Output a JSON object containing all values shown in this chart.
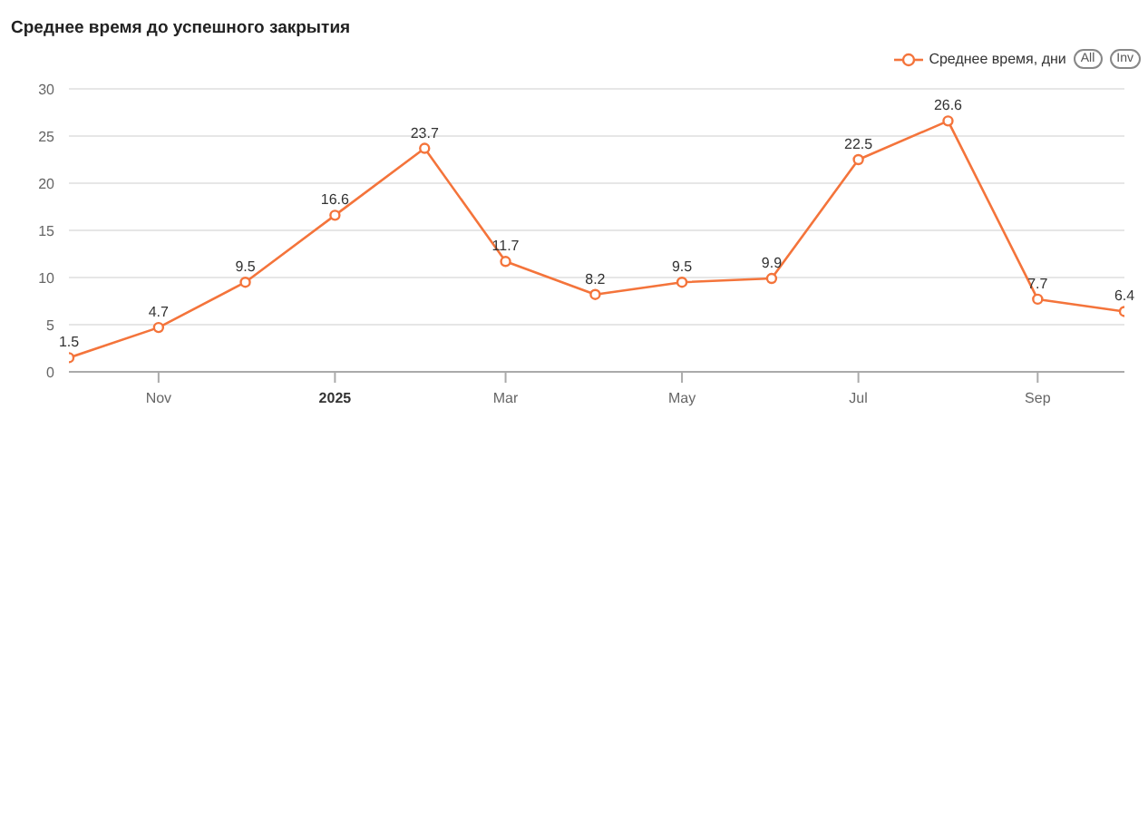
{
  "chart_data": {
    "type": "line",
    "title": "Среднее время до успешного закрытия",
    "x": [
      "2024-10",
      "2024-11",
      "2024-12",
      "2025-01",
      "2025-02",
      "2025-03",
      "2025-04",
      "2025-05",
      "2025-06",
      "2025-07",
      "2025-08",
      "2025-09",
      "2025-10"
    ],
    "series": [
      {
        "name": "Среднее время, дни",
        "color": "#f4743b",
        "values": [
          1.5,
          4.7,
          9.5,
          16.6,
          23.7,
          11.7,
          8.2,
          9.5,
          9.9,
          22.5,
          26.6,
          7.7,
          6.4
        ]
      }
    ],
    "xlim": [
      "2024-10",
      "2025-10"
    ],
    "xticks": [
      {
        "value": "2024-11",
        "label": "Nov"
      },
      {
        "value": "2025-01",
        "label": "2025"
      },
      {
        "value": "2025-03",
        "label": "Mar"
      },
      {
        "value": "2025-05",
        "label": "May"
      },
      {
        "value": "2025-07",
        "label": "Jul"
      },
      {
        "value": "2025-09",
        "label": "Sep"
      }
    ],
    "ylim": [
      0,
      30
    ],
    "yticks": [
      0,
      5,
      10,
      15,
      20,
      25,
      30
    ],
    "grid": "y",
    "legend": "top right",
    "marker": "circle",
    "line_style": "solid",
    "data_labels": true,
    "annotations": [
      "All",
      "Inv"
    ]
  }
}
